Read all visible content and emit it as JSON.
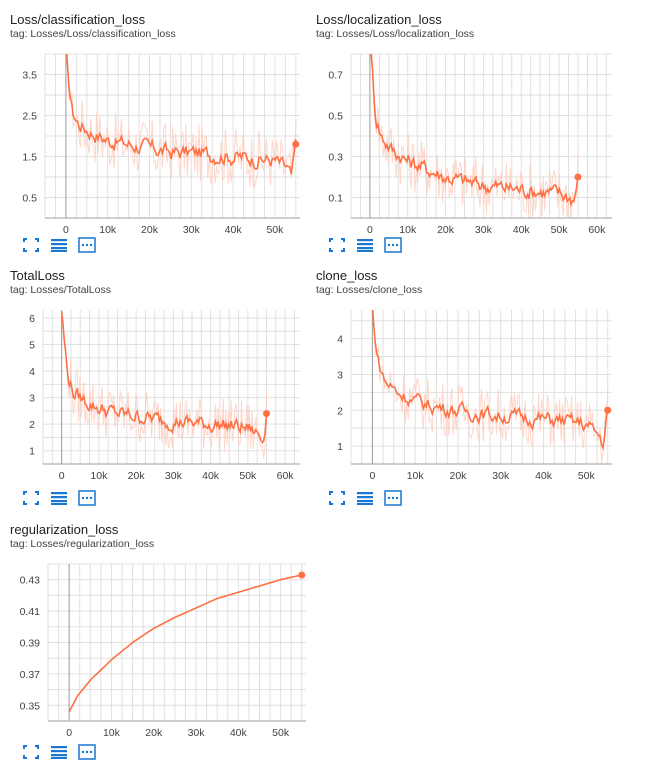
{
  "colors": {
    "series": "#ff7043",
    "series_smooth": "#f4511e",
    "series_raw": "#ffccbc",
    "grid": "#e0e0e0",
    "axis": "#9e9e9e",
    "tool": "#1976d2"
  },
  "icons": [
    "fit-domain-icon",
    "log-scale-icon",
    "data-selection-icon"
  ],
  "charts": [
    {
      "title": "Loss/classification_loss",
      "tag": "tag: Losses/Loss/classification_loss"
    },
    {
      "title": "Loss/localization_loss",
      "tag": "tag: Losses/Loss/localization_loss"
    },
    {
      "title": "TotalLoss",
      "tag": "tag: Losses/TotalLoss"
    },
    {
      "title": "clone_loss",
      "tag": "tag: Losses/clone_loss"
    },
    {
      "title": "regularization_loss",
      "tag": "tag: Losses/regularization_loss"
    }
  ],
  "chart_data": [
    {
      "type": "line",
      "title": "Loss/classification_loss",
      "xlim": [
        -5000,
        56000
      ],
      "ylim": [
        0,
        4
      ],
      "xticks": [
        0,
        10000,
        20000,
        30000,
        40000,
        50000
      ],
      "xtick_labels": [
        "0",
        "10k",
        "20k",
        "30k",
        "40k",
        "50k"
      ],
      "yticks": [
        0.5,
        1.5,
        2.5,
        3.5
      ],
      "ytick_labels": [
        "0.5",
        "1.5",
        "2.5",
        "3.5"
      ],
      "series": [
        {
          "x": [
            0,
            300,
            1500,
            3000,
            6000,
            10000,
            15000,
            20000,
            25000,
            30000,
            35000,
            40000,
            45000,
            50000,
            53000,
            54000,
            55000
          ],
          "y": [
            4.2,
            3.6,
            2.6,
            2.3,
            2.1,
            1.9,
            1.8,
            1.7,
            1.6,
            1.6,
            1.55,
            1.5,
            1.45,
            1.4,
            1.2,
            0.95,
            1.8
          ]
        }
      ]
    },
    {
      "type": "line",
      "title": "Loss/localization_loss",
      "xlim": [
        -5000,
        64000
      ],
      "ylim": [
        0,
        0.8
      ],
      "xticks": [
        0,
        10000,
        20000,
        30000,
        40000,
        50000,
        60000
      ],
      "xtick_labels": [
        "0",
        "10k",
        "20k",
        "30k",
        "40k",
        "50k",
        "60k"
      ],
      "yticks": [
        0.1,
        0.3,
        0.5,
        0.7
      ],
      "ytick_labels": [
        "0.1",
        "0.3",
        "0.5",
        "0.7"
      ],
      "series": [
        {
          "x": [
            0,
            300,
            1500,
            3000,
            6000,
            10000,
            15000,
            20000,
            25000,
            30000,
            35000,
            40000,
            45000,
            50000,
            53000,
            54000,
            55000
          ],
          "y": [
            0.9,
            0.8,
            0.5,
            0.4,
            0.33,
            0.28,
            0.24,
            0.2,
            0.18,
            0.16,
            0.15,
            0.14,
            0.13,
            0.12,
            0.1,
            0.09,
            0.2
          ]
        }
      ]
    },
    {
      "type": "line",
      "title": "TotalLoss",
      "xlim": [
        -5000,
        64000
      ],
      "ylim": [
        0.5,
        6.3
      ],
      "xticks": [
        0,
        10000,
        20000,
        30000,
        40000,
        50000,
        60000
      ],
      "xtick_labels": [
        "0",
        "10k",
        "20k",
        "30k",
        "40k",
        "50k",
        "60k"
      ],
      "yticks": [
        1,
        2,
        3,
        4,
        5,
        6
      ],
      "ytick_labels": [
        "1",
        "2",
        "3",
        "4",
        "5",
        "6"
      ],
      "series": [
        {
          "x": [
            0,
            300,
            1500,
            3000,
            6000,
            10000,
            15000,
            20000,
            25000,
            30000,
            35000,
            40000,
            45000,
            50000,
            53000,
            54000,
            55000
          ],
          "y": [
            6.3,
            5.8,
            4.0,
            3.2,
            2.9,
            2.6,
            2.4,
            2.3,
            2.2,
            2.1,
            2.05,
            2.0,
            1.95,
            1.85,
            1.6,
            1.4,
            2.4
          ]
        }
      ]
    },
    {
      "type": "line",
      "title": "clone_loss",
      "xlim": [
        -5000,
        56000
      ],
      "ylim": [
        0.5,
        4.8
      ],
      "xticks": [
        0,
        10000,
        20000,
        30000,
        40000,
        50000
      ],
      "xtick_labels": [
        "0",
        "10k",
        "20k",
        "30k",
        "40k",
        "50k"
      ],
      "yticks": [
        1,
        2,
        3,
        4
      ],
      "ytick_labels": [
        "1",
        "2",
        "3",
        "4"
      ],
      "series": [
        {
          "x": [
            0,
            300,
            1500,
            3000,
            6000,
            10000,
            15000,
            20000,
            25000,
            30000,
            35000,
            40000,
            45000,
            50000,
            53000,
            54000,
            55000
          ],
          "y": [
            4.9,
            4.3,
            3.3,
            2.8,
            2.5,
            2.25,
            2.1,
            2.0,
            1.9,
            1.85,
            1.8,
            1.75,
            1.7,
            1.6,
            1.3,
            1.05,
            2.0
          ]
        }
      ]
    },
    {
      "type": "line",
      "title": "regularization_loss",
      "xlim": [
        -5000,
        56000
      ],
      "ylim": [
        0.34,
        0.44
      ],
      "xticks": [
        0,
        10000,
        20000,
        30000,
        40000,
        50000
      ],
      "xtick_labels": [
        "0",
        "10k",
        "20k",
        "30k",
        "40k",
        "50k"
      ],
      "yticks": [
        0.35,
        0.37,
        0.39,
        0.41,
        0.43
      ],
      "ytick_labels": [
        "0.35",
        "0.37",
        "0.39",
        "0.41",
        "0.43"
      ],
      "series": [
        {
          "x": [
            0,
            2000,
            5000,
            10000,
            15000,
            20000,
            25000,
            30000,
            35000,
            40000,
            45000,
            50000,
            55000
          ],
          "y": [
            0.346,
            0.356,
            0.366,
            0.379,
            0.39,
            0.399,
            0.406,
            0.412,
            0.418,
            0.422,
            0.426,
            0.43,
            0.433
          ]
        }
      ]
    }
  ]
}
